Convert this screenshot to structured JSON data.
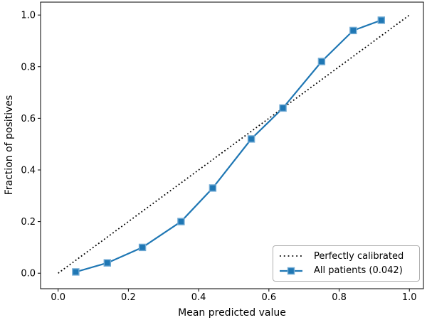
{
  "chart_data": {
    "type": "line",
    "title": "",
    "xlabel": "Mean predicted value",
    "ylabel": "Fraction of positives",
    "xlim": [
      -0.05,
      1.04
    ],
    "ylim": [
      -0.06,
      1.05
    ],
    "x_ticks": [
      0.0,
      0.2,
      0.4,
      0.6,
      0.8,
      1.0
    ],
    "x_tick_labels": [
      "0.0",
      "0.2",
      "0.4",
      "0.6",
      "0.8",
      "1.0"
    ],
    "y_ticks": [
      0.0,
      0.2,
      0.4,
      0.6,
      0.8,
      1.0
    ],
    "y_tick_labels": [
      "0.0",
      "0.2",
      "0.4",
      "0.6",
      "0.8",
      "1.0"
    ],
    "grid": false,
    "legend_position": "lower right",
    "series": [
      {
        "name": "Perfectly calibrated",
        "style": "dotted",
        "color": "#000000",
        "x": [
          0.0,
          1.0
        ],
        "y": [
          0.0,
          1.0
        ]
      },
      {
        "name": "All patients (0.042)",
        "style": "solid-square-markers",
        "color": "#1f77b4",
        "marker_edge_color": "#72abd4",
        "x": [
          0.05,
          0.14,
          0.24,
          0.35,
          0.44,
          0.55,
          0.64,
          0.75,
          0.84,
          0.92
        ],
        "y": [
          0.005,
          0.04,
          0.1,
          0.2,
          0.33,
          0.52,
          0.64,
          0.82,
          0.94,
          0.98
        ]
      }
    ],
    "legend": [
      {
        "label": "Perfectly calibrated"
      },
      {
        "label": "All patients (0.042)"
      }
    ]
  }
}
